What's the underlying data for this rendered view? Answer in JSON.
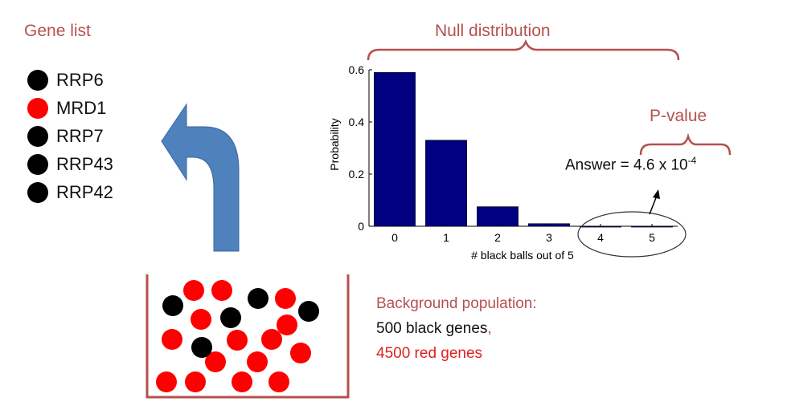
{
  "gene_list": {
    "title": "Gene list",
    "items": [
      {
        "label": "RRP6",
        "color": "#000000"
      },
      {
        "label": "MRD1",
        "color": "#ff0000"
      },
      {
        "label": "RRP7",
        "color": "#000000"
      },
      {
        "label": "RRP43",
        "color": "#000000"
      },
      {
        "label": "RRP42",
        "color": "#000000"
      }
    ]
  },
  "null_distribution": {
    "title": "Null distribution"
  },
  "pvalue": {
    "title": "P-value",
    "answer_prefix": "Answer = 4.6 x 10",
    "answer_exponent": "-4"
  },
  "background": {
    "title": "Background population:",
    "black_text": "500 black genes",
    "comma": ",",
    "red_text": "4500 red genes"
  },
  "colors": {
    "accent_red": "#b5504f",
    "bar": "#000080",
    "arrow": "#4f81bd",
    "ball_red": "#ff0000",
    "ball_black": "#000000"
  },
  "chart_data": {
    "type": "bar",
    "categories": [
      "0",
      "1",
      "2",
      "3",
      "4",
      "5"
    ],
    "values": [
      0.59,
      0.33,
      0.075,
      0.01,
      0.0004,
      0.00046
    ],
    "ylabel": "Probability",
    "xlabel": "# black balls out of 5",
    "ylim": [
      0,
      0.6
    ],
    "yticks": [
      "0",
      "0.2",
      "0.4",
      "0.6"
    ],
    "yticks_values": [
      0,
      0.2,
      0.4,
      0.6
    ]
  }
}
